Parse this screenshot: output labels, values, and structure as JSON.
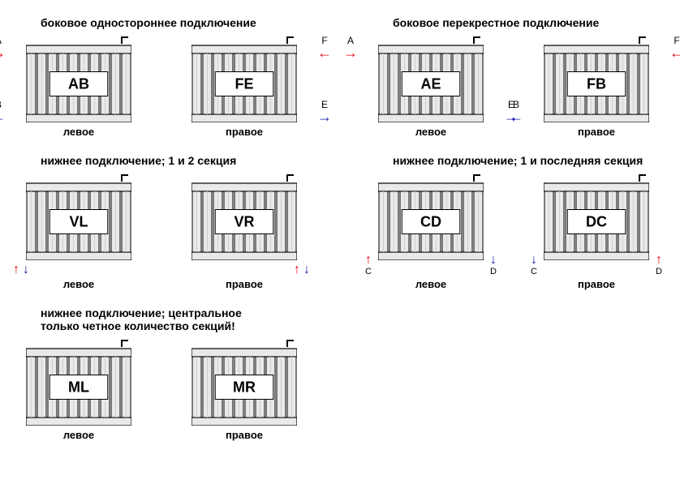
{
  "colors": {
    "stroke": "#000000",
    "fill_light": "#e9e9e9",
    "fill_mid": "#cfcfcf",
    "label_bg": "#ffffff",
    "hot": "#e30613",
    "cold": "#1a1aad"
  },
  "radiator": {
    "sections": 10,
    "width": 130,
    "height": 95,
    "label_font_size": 18,
    "label_font_weight": "700"
  },
  "blocks": [
    {
      "title": "боковое одностороннее подключение",
      "units": [
        {
          "code": "AB",
          "caption": "левое",
          "side_left": [
            {
              "pos": "top",
              "letter": "A",
              "color": "red",
              "dir": "right"
            },
            {
              "pos": "bot",
              "letter": "B",
              "color": "blue",
              "dir": "left"
            }
          ]
        },
        {
          "code": "FE",
          "caption": "правое",
          "side_right": [
            {
              "pos": "top",
              "letter": "F",
              "color": "red",
              "dir": "left"
            },
            {
              "pos": "bot",
              "letter": "E",
              "color": "blue",
              "dir": "right"
            }
          ]
        }
      ]
    },
    {
      "title": "боковое перекрестное подключение",
      "units": [
        {
          "code": "AE",
          "caption": "левое",
          "side_left": [
            {
              "pos": "top",
              "letter": "A",
              "color": "red",
              "dir": "right"
            }
          ],
          "side_right": [
            {
              "pos": "bot",
              "letter": "E",
              "color": "blue",
              "dir": "right"
            }
          ]
        },
        {
          "code": "FB",
          "caption": "правое",
          "side_right": [
            {
              "pos": "top",
              "letter": "F",
              "color": "red",
              "dir": "left"
            }
          ],
          "side_left": [
            {
              "pos": "bot",
              "letter": "B",
              "color": "blue",
              "dir": "left"
            }
          ]
        }
      ]
    },
    {
      "title": "нижнее подключение; 1 и 2 секция",
      "units": [
        {
          "code": "VL",
          "caption": "левое",
          "bottom": {
            "align": "left",
            "marks": [
              {
                "color": "red",
                "dir": "up"
              },
              {
                "color": "blue",
                "dir": "down"
              }
            ]
          }
        },
        {
          "code": "VR",
          "caption": "правое",
          "bottom": {
            "align": "right",
            "marks": [
              {
                "color": "red",
                "dir": "up"
              },
              {
                "color": "blue",
                "dir": "down"
              }
            ]
          }
        }
      ]
    },
    {
      "title": "нижнее подключение; 1 и последняя секция",
      "units": [
        {
          "code": "CD",
          "caption": "левое",
          "bottom": {
            "align": "spread",
            "marks": [
              {
                "color": "red",
                "dir": "up",
                "letter": "C"
              },
              {
                "color": "blue",
                "dir": "down",
                "letter": "D"
              }
            ]
          }
        },
        {
          "code": "DC",
          "caption": "правое",
          "bottom": {
            "align": "spread",
            "marks": [
              {
                "color": "blue",
                "dir": "down",
                "letter": "C"
              },
              {
                "color": "red",
                "dir": "up",
                "letter": "D"
              }
            ]
          }
        }
      ]
    },
    {
      "title": "нижнее подключение; центральное\nтолько четное количество секций!",
      "units": [
        {
          "code": "ML",
          "caption": "левое"
        },
        {
          "code": "MR",
          "caption": "правое"
        }
      ]
    }
  ],
  "arrow_glyph": {
    "left": "←",
    "right": "→",
    "up": "↑",
    "down": "↓"
  }
}
